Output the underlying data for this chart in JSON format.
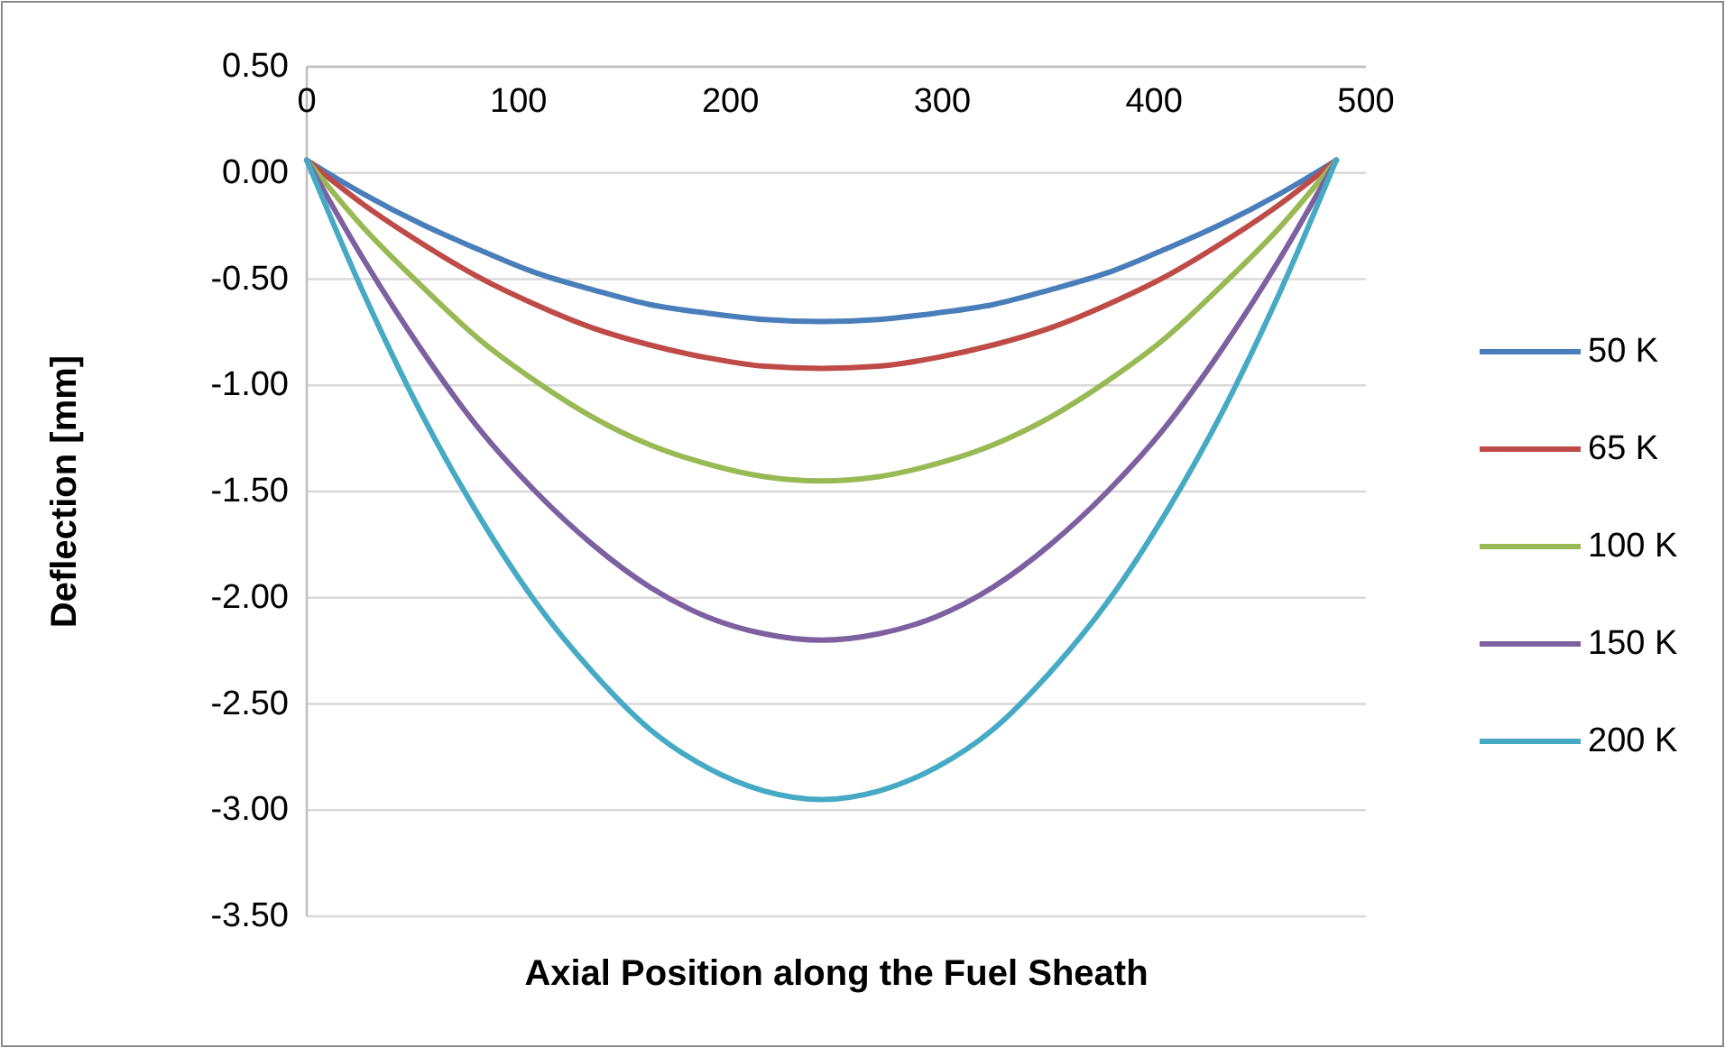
{
  "chart_data": {
    "type": "line",
    "xlabel": "Axial Position along the Fuel Sheath",
    "ylabel": "Deflection [mm]",
    "x": [
      0,
      27,
      54,
      81,
      108,
      135,
      162,
      189,
      216,
      243,
      270,
      297,
      324,
      351,
      378,
      405,
      432,
      459,
      486
    ],
    "xlim": [
      0,
      500
    ],
    "xticks": [
      0,
      100,
      200,
      300,
      400,
      500
    ],
    "ylim": [
      -3.5,
      0.5
    ],
    "yticks": [
      {
        "value": 0.5,
        "label": "0.50"
      },
      {
        "value": 0,
        "label": "0.00"
      },
      {
        "value": -0.5,
        "label": "-0.50"
      },
      {
        "value": -1,
        "label": "-1.00"
      },
      {
        "value": -1.5,
        "label": "-1.50"
      },
      {
        "value": -2,
        "label": "-2.00"
      },
      {
        "value": -2.5,
        "label": "-2.50"
      },
      {
        "value": -3,
        "label": "-3.00"
      },
      {
        "value": -3.5,
        "label": "-3.50"
      }
    ],
    "grid": "y",
    "legend": "right",
    "marker": "none",
    "line_style": "solid",
    "series": [
      {
        "name": "50 K",
        "color": "#4a7ebb",
        "values": [
          0.06,
          -0.1,
          -0.24,
          -0.36,
          -0.47,
          -0.55,
          -0.62,
          -0.66,
          -0.69,
          -0.7,
          -0.69,
          -0.66,
          -0.62,
          -0.55,
          -0.47,
          -0.36,
          -0.24,
          -0.1,
          0.06
        ]
      },
      {
        "name": "65 K",
        "color": "#be4b48",
        "values": [
          0.06,
          -0.15,
          -0.33,
          -0.49,
          -0.62,
          -0.73,
          -0.81,
          -0.87,
          -0.91,
          -0.92,
          -0.91,
          -0.87,
          -0.81,
          -0.73,
          -0.62,
          -0.49,
          -0.33,
          -0.15,
          0.06
        ]
      },
      {
        "name": "100 K",
        "color": "#98b954",
        "values": [
          0.06,
          -0.26,
          -0.53,
          -0.78,
          -0.98,
          -1.15,
          -1.28,
          -1.37,
          -1.43,
          -1.45,
          -1.43,
          -1.37,
          -1.28,
          -1.15,
          -0.98,
          -0.78,
          -0.53,
          -0.26,
          0.06
        ]
      },
      {
        "name": "150 K",
        "color": "#7d60a0",
        "values": [
          0.06,
          -0.41,
          -0.83,
          -1.2,
          -1.5,
          -1.75,
          -1.95,
          -2.09,
          -2.17,
          -2.2,
          -2.17,
          -2.09,
          -1.95,
          -1.75,
          -1.5,
          -1.2,
          -0.83,
          -0.41,
          0.06
        ]
      },
      {
        "name": "200 K",
        "color": "#46aac5",
        "values": [
          0.06,
          -0.57,
          -1.13,
          -1.61,
          -2.02,
          -2.35,
          -2.62,
          -2.8,
          -2.91,
          -2.95,
          -2.91,
          -2.8,
          -2.62,
          -2.35,
          -2.02,
          -1.61,
          -1.13,
          -0.57,
          0.06
        ]
      }
    ]
  }
}
